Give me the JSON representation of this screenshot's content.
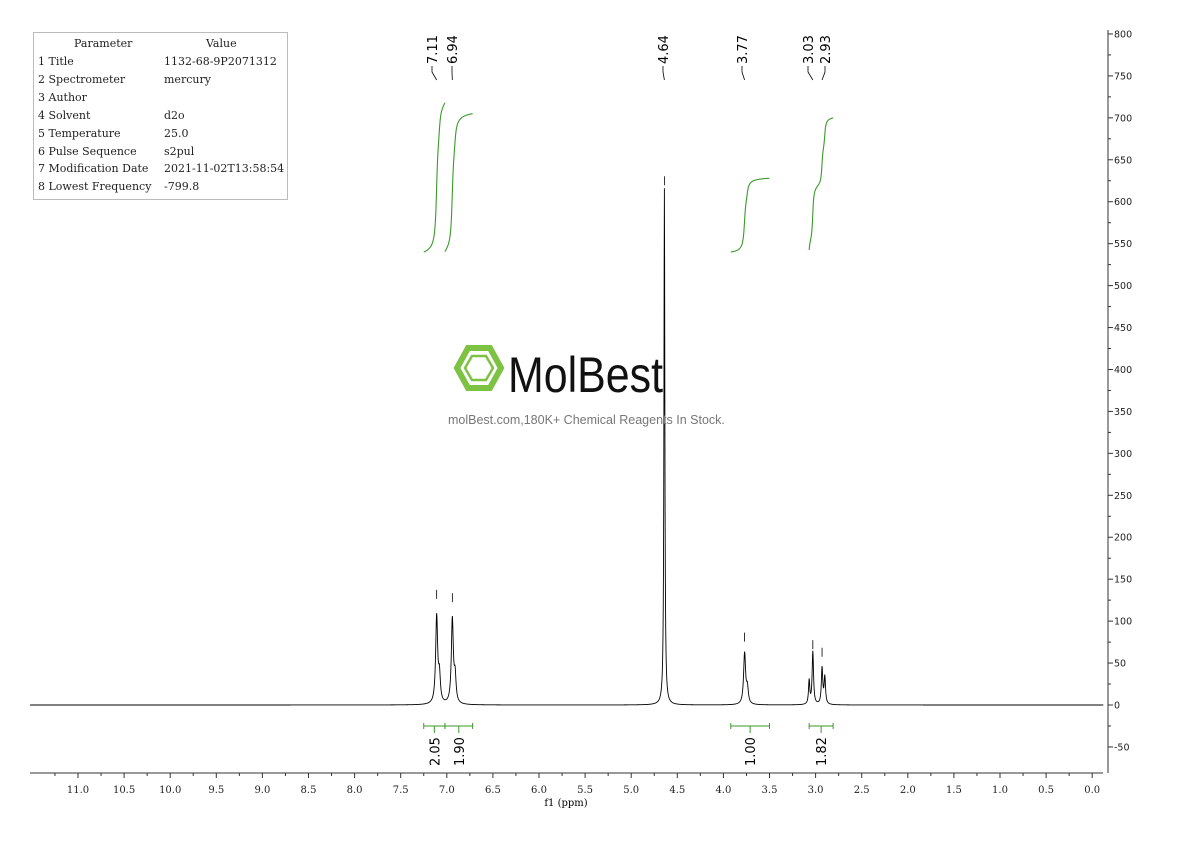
{
  "parameters": {
    "header": [
      "Parameter",
      "Value"
    ],
    "rows": [
      [
        "1 Title",
        "1132-68-9P2071312"
      ],
      [
        "2 Spectrometer",
        "mercury"
      ],
      [
        "3 Author",
        ""
      ],
      [
        "4 Solvent",
        "d2o"
      ],
      [
        "5 Temperature",
        "25.0"
      ],
      [
        "6 Pulse Sequence",
        "s2pul"
      ],
      [
        "7 Modification Date",
        "2021-11-02T13:58:54"
      ],
      [
        "8 Lowest Frequency",
        "-799.8"
      ]
    ]
  },
  "watermark": {
    "brand": "MolBest",
    "tagline": "molBest.com,180K+ Chemical Reagents In Stock.",
    "color": "#7dc242"
  },
  "chart_data": {
    "type": "line",
    "xlabel": "f1 (ppm)",
    "ylabel": "",
    "xlim": [
      11.5,
      -0.1
    ],
    "x_reversed": true,
    "ylim": [
      -83,
      810
    ],
    "xticks": [
      11.0,
      10.5,
      10.0,
      9.5,
      9.0,
      8.5,
      8.0,
      7.5,
      7.0,
      6.5,
      6.0,
      5.5,
      5.0,
      4.5,
      4.0,
      3.5,
      3.0,
      2.5,
      2.0,
      1.5,
      1.0,
      0.5,
      0.0
    ],
    "xtick_labels": [
      "11.0",
      "10.5",
      "10.0",
      "9.5",
      "9.0",
      "8.5",
      "8.0",
      "7.5",
      "7.0",
      "6.5",
      "6.0",
      "5.5",
      "5.0",
      "4.5",
      "4.0",
      "3.5",
      "3.0",
      "2.5",
      "2.0",
      "1.5",
      "1.0",
      "0.5",
      "0.0"
    ],
    "yticks": [
      800,
      750,
      700,
      650,
      600,
      550,
      500,
      450,
      400,
      350,
      300,
      250,
      200,
      150,
      100,
      50,
      0,
      -50
    ],
    "ytick_labels": [
      "800",
      "750",
      "700",
      "650",
      "600",
      "550",
      "500",
      "450",
      "400",
      "350",
      "300",
      "250",
      "200",
      "150",
      "100",
      "50",
      "0",
      "-50"
    ],
    "peak_labels": [
      "7.11",
      "6.94",
      "4.64",
      "3.77",
      "3.03",
      "2.93"
    ],
    "peaks": [
      {
        "ppm": 7.11,
        "intensity": 123
      },
      {
        "ppm": 6.94,
        "intensity": 119
      },
      {
        "ppm": 4.64,
        "intensity": 616
      },
      {
        "ppm": 3.77,
        "intensity": 72
      },
      {
        "ppm": 3.03,
        "intensity": 63
      },
      {
        "ppm": 2.93,
        "intensity": 54
      }
    ],
    "integrals": [
      {
        "from": 7.25,
        "to": 7.02,
        "value": "2.05"
      },
      {
        "from": 7.02,
        "to": 6.72,
        "value": "1.90"
      },
      {
        "from": 3.92,
        "to": 3.5,
        "value": "1.00"
      },
      {
        "from": 3.07,
        "to": 2.81,
        "value": "1.82"
      }
    ],
    "spectrum_color": "#000000",
    "integral_color": "#3a9a2a",
    "grid": false
  }
}
